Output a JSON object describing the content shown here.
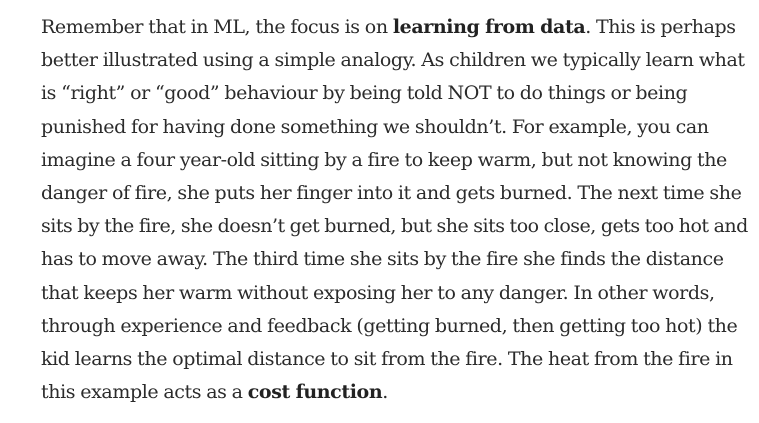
{
  "article": {
    "lines": [
      [
        "Remember that in ML, the focus is on ",
        "learning from data",
        ". This is perhaps"
      ],
      [
        "better illustrated using a simple analogy. As children we typically learn what"
      ],
      [
        "is “right” or “good” behaviour by being told NOT to do things or being"
      ],
      [
        "punished for having done something we shouldn’t. For example, you can"
      ],
      [
        "imagine a four year-old sitting by a fire to keep warm, but not knowing the"
      ],
      [
        "danger of fire, she puts her finger into it and gets burned. The next time she"
      ],
      [
        "sits by the fire, she doesn’t get burned, but she sits too close, gets too hot and"
      ],
      [
        "has to move away. The third time she sits by the fire she finds the distance"
      ],
      [
        "that keeps her warm without exposing her to any danger. In other words,"
      ],
      [
        "through experience and feedback (getting burned, then getting too hot) the"
      ],
      [
        "kid learns the optimal distance to sit from the fire. The heat from the fire in"
      ],
      [
        "this example acts as a ",
        "cost function",
        "."
      ]
    ]
  }
}
